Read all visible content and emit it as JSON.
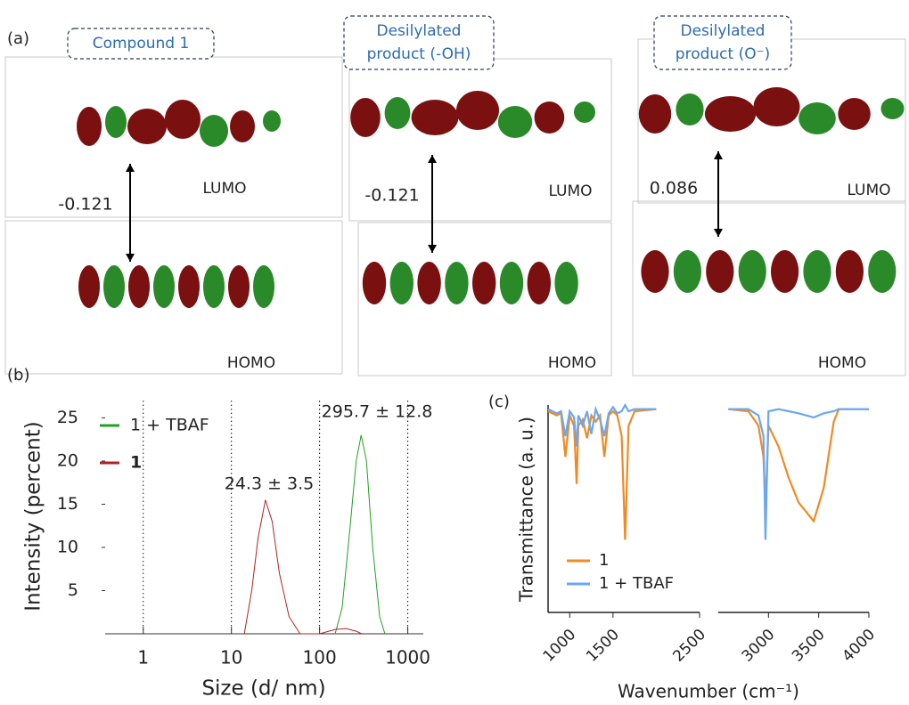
{
  "panel_a": {
    "label": "(a)",
    "columns": [
      {
        "title": [
          "Compound 1"
        ],
        "gap": -0.121,
        "lumo": "LUMO",
        "homo": "HOMO"
      },
      {
        "title": [
          "Desilylated",
          "product (-OH)"
        ],
        "gap": -0.121,
        "lumo": "LUMO",
        "homo": "HOMO"
      },
      {
        "title": [
          "Desilylated",
          "product (O⁻)"
        ],
        "gap": 0.086,
        "lumo": "LUMO",
        "homo": "HOMO"
      }
    ]
  },
  "chart_data": [
    {
      "type": "line",
      "label": "(b)",
      "x_label": "Size (d/ nm)",
      "y_label": "Intensity (percent)",
      "log_x": true,
      "xlim": [
        0.37,
        1500
      ],
      "ylim": [
        0,
        27
      ],
      "xticks": [
        1,
        10,
        100,
        1000
      ],
      "yticks": [
        5,
        10,
        15,
        20,
        25
      ],
      "grid": true,
      "annotations": [
        "24.3 ± 3.5",
        "295.7 ± 12.8"
      ],
      "series": [
        {
          "name": "1 + TBAF",
          "color": "#22a022",
          "x": [
            150,
            180,
            220,
            260,
            296,
            340,
            400,
            480,
            550
          ],
          "values": [
            0,
            3,
            12,
            20,
            23,
            20,
            10,
            2,
            0
          ]
        },
        {
          "name": "1",
          "color": "#b22222",
          "x": [
            14,
            17,
            20,
            24.3,
            29,
            35,
            45,
            60,
            100,
            150,
            200,
            260,
            300
          ],
          "values": [
            0,
            5,
            11,
            15.5,
            13,
            7,
            2,
            0,
            0,
            0.5,
            0.6,
            0.3,
            0
          ]
        }
      ]
    },
    {
      "type": "line",
      "label": "(c)",
      "x_label": "Wavenumber (cm⁻¹)",
      "y_label": "Transmittance (a. u.)",
      "ylim": [
        0,
        1
      ],
      "segments": [
        {
          "xlim": [
            750,
            2500
          ],
          "xticks": [
            1000,
            1500,
            2500
          ]
        },
        {
          "xlim": [
            2500,
            4000
          ],
          "xticks": [
            3000,
            3500,
            4000
          ]
        }
      ],
      "x": [
        750,
        850,
        900,
        950,
        1000,
        1050,
        1080,
        1100,
        1150,
        1200,
        1250,
        1300,
        1350,
        1400,
        1450,
        1500,
        1550,
        1600,
        1640,
        1680,
        1750,
        2000,
        2600,
        2800,
        2900,
        2950,
        2970,
        3000,
        3100,
        3200,
        3300,
        3450,
        3550,
        3650,
        3700,
        4000
      ],
      "series": [
        {
          "name": "1",
          "color": "#f08a24",
          "values": [
            0.97,
            0.95,
            0.96,
            0.75,
            0.95,
            0.9,
            0.62,
            0.9,
            0.93,
            0.84,
            0.95,
            0.92,
            0.95,
            0.75,
            0.95,
            0.97,
            0.95,
            0.85,
            0.35,
            0.9,
            0.97,
            0.98,
            0.98,
            0.97,
            0.9,
            0.75,
            0.5,
            0.9,
            0.8,
            0.65,
            0.53,
            0.44,
            0.6,
            0.92,
            0.98,
            0.98
          ]
        },
        {
          "name": "1 + TBAF",
          "color": "#6aa8f0",
          "values": [
            0.98,
            0.96,
            0.97,
            0.85,
            0.97,
            0.94,
            0.8,
            0.95,
            0.9,
            0.97,
            0.86,
            0.98,
            0.93,
            0.85,
            0.96,
            0.99,
            0.96,
            0.97,
            1.0,
            0.97,
            0.98,
            0.98,
            0.98,
            0.98,
            0.95,
            0.85,
            0.35,
            0.97,
            0.98,
            0.97,
            0.96,
            0.94,
            0.96,
            0.97,
            0.98,
            0.98
          ]
        }
      ]
    }
  ]
}
